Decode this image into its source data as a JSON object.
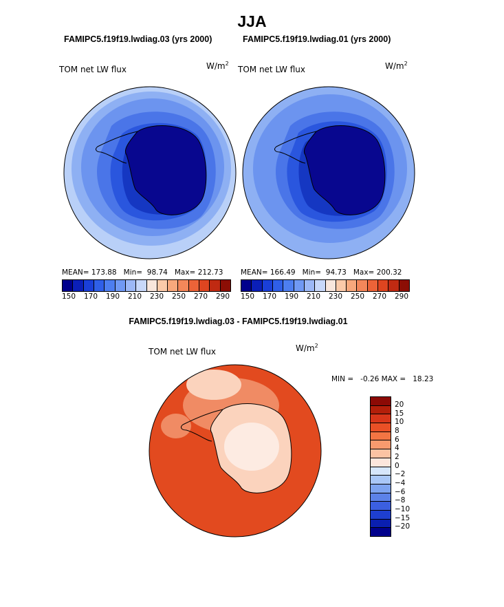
{
  "title": "JJA",
  "panels": [
    {
      "case": "FAMIPC5.f19f19.lwdiag.03 (yrs 2000)",
      "field": "TOM net LW flux",
      "units": "W/m",
      "units_sup": "2",
      "mean_label": "MEAN=",
      "mean": "173.88",
      "min_label": "Min=",
      "min": "98.74",
      "max_label": "Max=",
      "max": "212.73"
    },
    {
      "case": "FAMIPC5.f19f19.lwdiag.01 (yrs 2000)",
      "field": "TOM net LW flux",
      "units": "W/m",
      "units_sup": "2",
      "mean_label": "MEAN=",
      "mean": "166.49",
      "min_label": "Min=",
      "min": "94.73",
      "max_label": "Max=",
      "max": "200.32"
    }
  ],
  "colorbar_top": {
    "colors": [
      "#00008c",
      "#0b1fb8",
      "#1a3fd8",
      "#2f5fe8",
      "#4d7ef0",
      "#7099f4",
      "#9cb8f7",
      "#c8d8fa",
      "#f8e6dc",
      "#fbcaa9",
      "#f8a87c",
      "#f3875a",
      "#ec6338",
      "#de4520",
      "#c02a12",
      "#8c0e05"
    ],
    "labels": [
      "150",
      "170",
      "190",
      "210",
      "230",
      "250",
      "270",
      "290"
    ]
  },
  "diff": {
    "title": "FAMIPC5.f19f19.lwdiag.03 - FAMIPC5.f19f19.lwdiag.01",
    "field": "TOM net LW flux",
    "units": "W/m",
    "units_sup": "2",
    "minmax": "MIN =   -0.26 MAX =   18.23",
    "colorbar": {
      "colors": [
        "#8c0a05",
        "#b31f0a",
        "#d8361a",
        "#ea5026",
        "#f37543",
        "#f79a6e",
        "#fbc3a3",
        "#fde6dc",
        "#d6e6fb",
        "#a9c7f7",
        "#7ea4f0",
        "#5c82e8",
        "#3b5fe0",
        "#1e3fd0",
        "#0a1fb0",
        "#00008c"
      ],
      "labels": [
        "20",
        "15",
        "10",
        "8",
        "6",
        "4",
        "2",
        "0",
        "-2",
        "-4",
        "-6",
        "-8",
        "-10",
        "-15",
        "-20"
      ]
    }
  },
  "map_colors": {
    "ocean_outer": "#b9d0f8",
    "ocean_1": "#8eb0f3",
    "ocean_2": "#6c94ef",
    "ocean_3": "#4a75e8",
    "ocean_4": "#2a56de",
    "ocean_5": "#1537c2",
    "continent": "#08078f",
    "diff_bg": "#e24a1f",
    "diff_mid": "#f08b64",
    "diff_light": "#fbd3bd",
    "diff_pale": "#fdebe2"
  }
}
